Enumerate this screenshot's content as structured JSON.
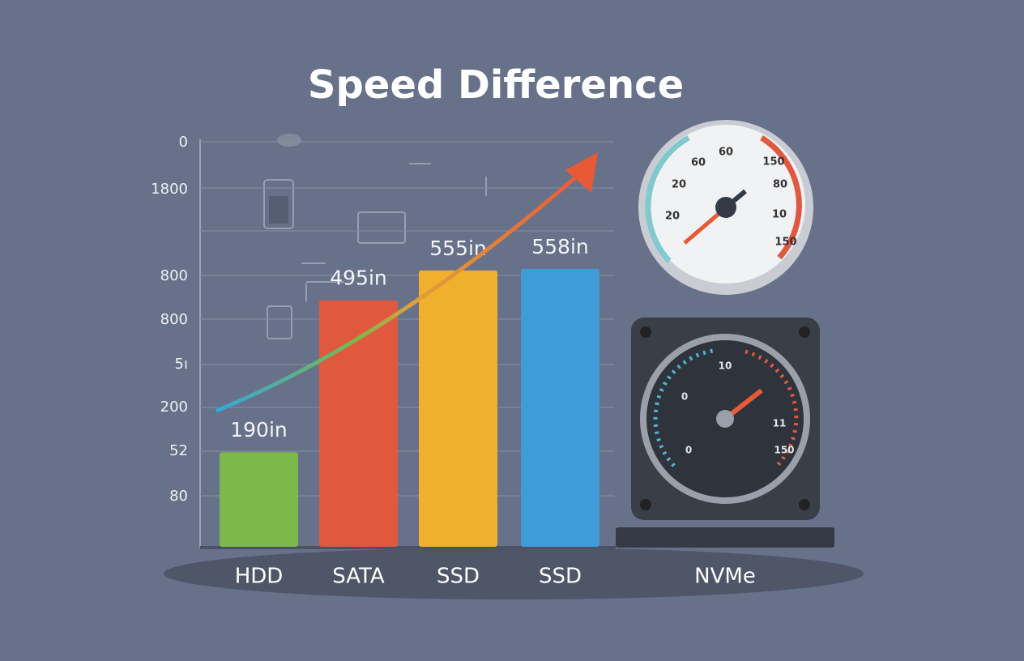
{
  "chart_data": {
    "type": "bar",
    "title": "Speed Difference",
    "categories": [
      "HDD",
      "SATA",
      "SSD",
      "SSD"
    ],
    "values": [
      190,
      495,
      555,
      558
    ],
    "value_labels": [
      "190in",
      "495in",
      "555in",
      "558in"
    ],
    "colors": [
      "#7cb84a",
      "#e0593f",
      "#f0b02d",
      "#3e9cd6"
    ],
    "y_axis_labels": [
      "0",
      "1800",
      "800",
      "800",
      "5ı",
      "200",
      "52",
      "80"
    ],
    "grid": true
  },
  "device": {
    "label": "NVMe",
    "top_gauge_labels": [
      "60",
      "60",
      "150",
      "20",
      "80",
      "20",
      "10",
      "150"
    ],
    "bottom_gauge_labels": [
      "10",
      "0",
      "0",
      "11",
      "150"
    ]
  }
}
